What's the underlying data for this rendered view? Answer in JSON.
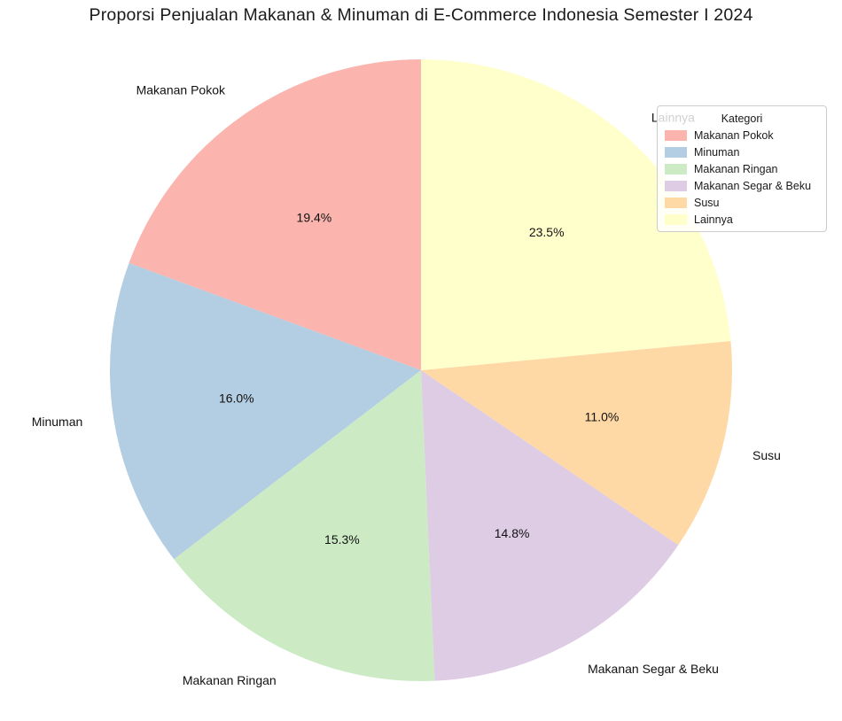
{
  "chart_data": {
    "type": "pie",
    "title": "Proporsi Penjualan Makanan & Minuman di E-Commerce Indonesia Semester I 2024",
    "legend_title": "Kategori",
    "legend_position": "upper right",
    "categories": [
      "Makanan Pokok",
      "Minuman",
      "Makanan Ringan",
      "Makanan Segar & Beku",
      "Susu",
      "Lainnya"
    ],
    "values": [
      19.4,
      16.0,
      15.3,
      14.8,
      11.0,
      23.5
    ],
    "percent_labels": [
      "19.4%",
      "16.0%",
      "15.3%",
      "14.8%",
      "11.0%",
      "23.5%"
    ],
    "colors": [
      "#fbb4ae",
      "#b3cde3",
      "#ccebc5",
      "#decbe4",
      "#fed9a6",
      "#ffffcc"
    ],
    "start_angle": 90,
    "counterclockwise": true,
    "pct_distance": 0.6,
    "label_distance": 1.1
  }
}
